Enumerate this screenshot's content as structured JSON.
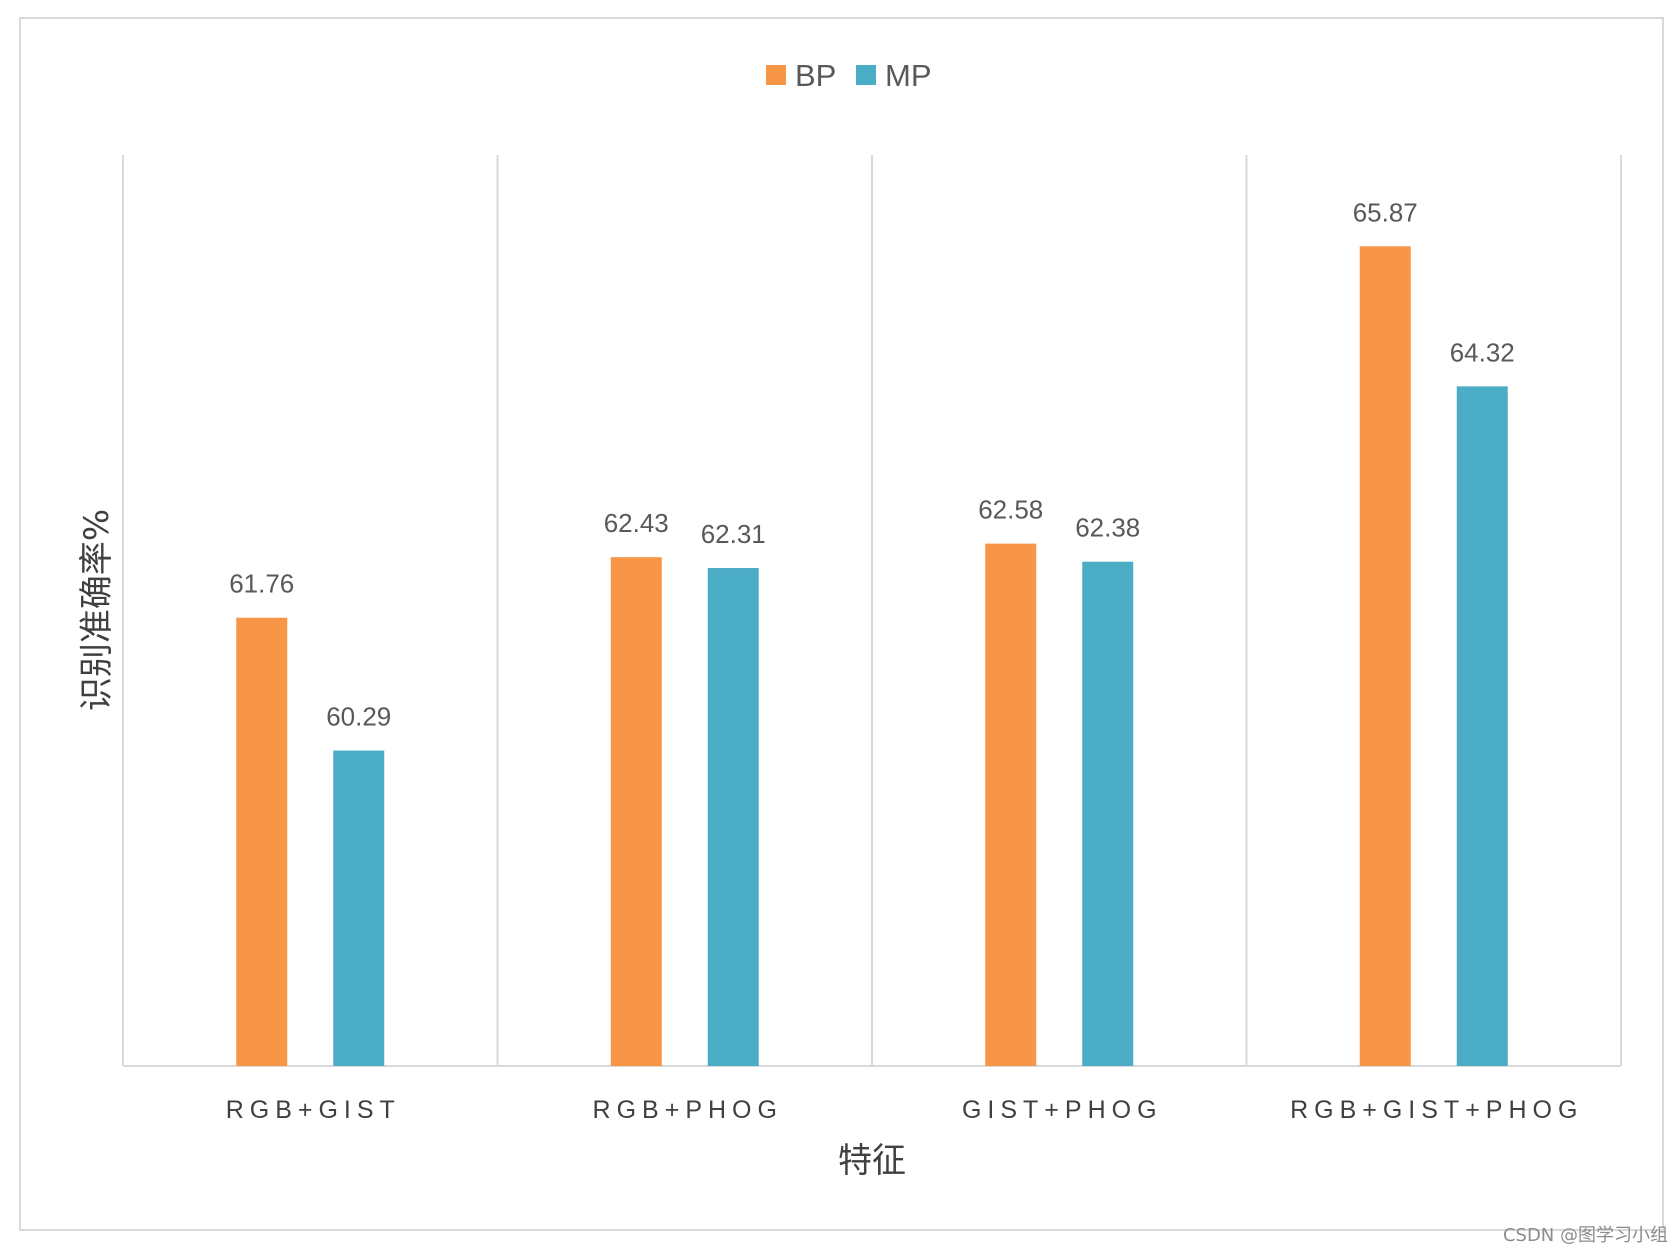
{
  "chart_data": {
    "type": "bar",
    "title": "",
    "xlabel": "特征",
    "ylabel": "识别准确率%",
    "categories": [
      "RGB+GIST",
      "RGB+PHOG",
      "GIST+PHOG",
      "RGB+GIST+PHOG"
    ],
    "series": [
      {
        "name": "BP",
        "color": "#f79646",
        "values": [
          61.76,
          62.43,
          62.58,
          65.87
        ]
      },
      {
        "name": "MP",
        "color": "#4bacc6",
        "values": [
          60.29,
          62.31,
          62.38,
          64.32
        ]
      }
    ],
    "ylim": [
      56.8,
      66.88
    ],
    "grid": "vertical separators between categories",
    "legend": "top-center",
    "colors": {
      "axis": "#d9d9d9",
      "frame": "#d9d9d9"
    }
  },
  "watermark": "CSDN @图学习小组"
}
